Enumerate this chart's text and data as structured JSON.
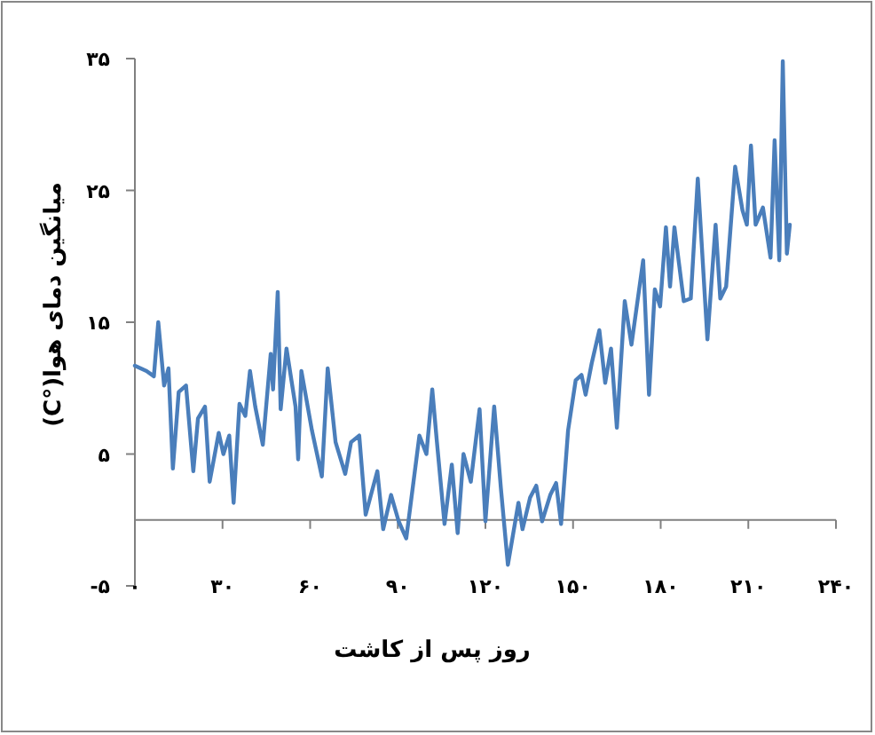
{
  "chart_data": {
    "type": "line",
    "xlabel": "روز پس از کاشت",
    "ylabel": "میانگین دمای هوا(°C)",
    "xlim": [
      0,
      240
    ],
    "xticks": [
      {
        "value": 0,
        "label": "۰"
      },
      {
        "value": 30,
        "label": "۳۰"
      },
      {
        "value": 60,
        "label": "۶۰"
      },
      {
        "value": 90,
        "label": "۹۰"
      },
      {
        "value": 120,
        "label": "۱۲۰"
      },
      {
        "value": 150,
        "label": "۱۵۰"
      },
      {
        "value": 180,
        "label": "۱۸۰"
      },
      {
        "value": 210,
        "label": "۲۱۰"
      },
      {
        "value": 240,
        "label": "۲۴۰"
      }
    ],
    "ylim": [
      -5,
      35
    ],
    "yticks": [
      {
        "value": -5,
        "label": "-۵"
      },
      {
        "value": 5,
        "label": "۵"
      },
      {
        "value": 15,
        "label": "۱۵"
      },
      {
        "value": 25,
        "label": "۲۵"
      },
      {
        "value": 35,
        "label": "۳۵"
      }
    ],
    "grid": false,
    "series": [
      {
        "color": "#4a7ebb",
        "x": [
          0,
          4,
          6.5,
          8,
          10,
          11.5,
          13,
          15,
          17.5,
          20,
          21.6,
          24,
          25.6,
          28.7,
          30.3,
          32.3,
          33.8,
          35.8,
          37.8,
          39.4,
          41.2,
          43.8,
          46.5,
          47.3,
          48.9,
          49.9,
          51.9,
          55,
          55.9,
          57,
          60.6,
          64,
          66,
          68.7,
          72,
          74,
          76.8,
          79,
          83,
          85,
          87.7,
          90.3,
          92.9,
          97.4,
          99.8,
          101.8,
          103.4,
          106,
          108.5,
          110.5,
          112.5,
          115,
          118,
          120,
          123,
          125.3,
          127.7,
          131.3,
          132.7,
          135.3,
          137.4,
          139.4,
          142.2,
          144.2,
          145.9,
          148.3,
          150.9,
          152.9,
          154.3,
          156.4,
          159,
          161,
          163,
          165,
          167.7,
          170,
          174,
          176,
          178,
          179.8,
          181.8,
          183.2,
          184.7,
          187.9,
          190.3,
          192.7,
          196,
          198.8,
          200.4,
          202.4,
          205.5,
          208,
          209.5,
          210.9,
          212.5,
          215,
          217.6,
          219,
          220.6,
          221.8,
          223.2,
          224.2
        ],
        "values": [
          11.7,
          11.3,
          10.9,
          15.0,
          10.2,
          11.5,
          3.9,
          9.7,
          10.2,
          3.7,
          7.7,
          8.6,
          2.9,
          6.6,
          5.0,
          6.4,
          1.3,
          8.8,
          7.9,
          11.3,
          8.6,
          5.7,
          12.6,
          9.9,
          17.3,
          8.4,
          13.0,
          8.6,
          4.6,
          11.3,
          6.8,
          3.3,
          11.5,
          5.9,
          3.5,
          5.9,
          6.4,
          0.4,
          3.7,
          -0.7,
          1.9,
          -0.1,
          -1.4,
          6.4,
          5.0,
          9.9,
          5.9,
          -0.3,
          4.2,
          -1.0,
          5.0,
          2.9,
          8.4,
          -0.1,
          8.6,
          2.4,
          -3.4,
          1.3,
          -0.7,
          1.7,
          2.6,
          -0.1,
          1.9,
          2.8,
          -0.3,
          6.8,
          10.6,
          11.0,
          9.5,
          11.9,
          14.4,
          10.4,
          13.0,
          7.0,
          16.6,
          13.3,
          19.7,
          9.5,
          17.5,
          16.2,
          22.2,
          17.7,
          22.2,
          16.6,
          16.8,
          25.9,
          13.7,
          22.4,
          16.8,
          17.7,
          26.8,
          23.5,
          22.4,
          28.4,
          22.4,
          23.7,
          19.9,
          28.8,
          19.7,
          34.8,
          20.2,
          22.4
        ]
      }
    ]
  }
}
